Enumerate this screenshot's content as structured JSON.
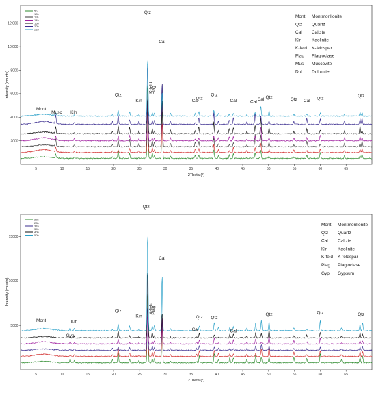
{
  "chart_data": [
    {
      "type": "line",
      "xlabel": "2Theta (°)",
      "ylabel": "Intensity (counts)",
      "xlim": [
        2,
        70
      ],
      "ylim": [
        0,
        13500
      ],
      "x_ticks": [
        5,
        10,
        15,
        20,
        25,
        30,
        35,
        40,
        45,
        50,
        55,
        60,
        65
      ],
      "y_ticks": [
        2000,
        4000,
        6000,
        8000,
        10000,
        12000
      ],
      "y_tick_labels": [
        "2000",
        "4000",
        "6000",
        "8000",
        "10,000",
        "12,000"
      ],
      "legend_position": "top-left",
      "series": [
        {
          "name": "5b",
          "color": "#2e8b2e",
          "baseline": 500
        },
        {
          "name": "10b",
          "color": "#d23030",
          "baseline": 1000
        },
        {
          "name": "11b",
          "color": "#3a3a3a",
          "baseline": 1500
        },
        {
          "name": "14b",
          "color": "#a020a0",
          "baseline": 2000
        },
        {
          "name": "15b",
          "color": "#111111",
          "baseline": 2600
        },
        {
          "name": "20b",
          "color": "#3b2d8f",
          "baseline": 3400
        },
        {
          "name": "21b",
          "color": "#2aa0c8",
          "baseline": 4100
        }
      ],
      "peaks": [
        {
          "x": 8.8,
          "height": 900
        },
        {
          "x": 12.4,
          "height": 250
        },
        {
          "x": 19.8,
          "height": 300
        },
        {
          "x": 20.9,
          "height": 1000
        },
        {
          "x": 23.1,
          "height": 700
        },
        {
          "x": 24.9,
          "height": 300
        },
        {
          "x": 26.6,
          "height": 9000
        },
        {
          "x": 27.5,
          "height": 700
        },
        {
          "x": 27.9,
          "height": 500
        },
        {
          "x": 29.4,
          "height": 6000
        },
        {
          "x": 31.0,
          "height": 500
        },
        {
          "x": 35.8,
          "height": 450
        },
        {
          "x": 36.5,
          "height": 700
        },
        {
          "x": 39.4,
          "height": 1200
        },
        {
          "x": 40.3,
          "height": 400
        },
        {
          "x": 42.4,
          "height": 500
        },
        {
          "x": 43.2,
          "height": 900
        },
        {
          "x": 45.8,
          "height": 300
        },
        {
          "x": 47.4,
          "height": 1200
        },
        {
          "x": 48.5,
          "height": 1500
        },
        {
          "x": 50.1,
          "height": 800
        },
        {
          "x": 54.9,
          "height": 300
        },
        {
          "x": 57.4,
          "height": 600
        },
        {
          "x": 60.0,
          "height": 700
        },
        {
          "x": 64.7,
          "height": 400
        },
        {
          "x": 67.7,
          "height": 700
        },
        {
          "x": 68.1,
          "height": 800
        }
      ],
      "annotations": [
        {
          "text": "Mont",
          "x": 6.0,
          "y": 4600
        },
        {
          "text": "Musc",
          "x": 9.0,
          "y": 4300
        },
        {
          "text": "Kln",
          "x": 12.3,
          "y": 4300
        },
        {
          "text": "Qtz",
          "x": 20.9,
          "y": 5800
        },
        {
          "text": "Kln",
          "x": 24.9,
          "y": 5300
        },
        {
          "text": "Qtz",
          "x": 26.6,
          "y": 12800
        },
        {
          "text": "K-feld",
          "x": 27.5,
          "y": 6500
        },
        {
          "text": "Plag",
          "x": 28.0,
          "y": 6300
        },
        {
          "text": "Cal",
          "x": 29.4,
          "y": 10300
        },
        {
          "text": "Cal",
          "x": 35.8,
          "y": 5300
        },
        {
          "text": "Qtz",
          "x": 36.6,
          "y": 5500
        },
        {
          "text": "Qtz",
          "x": 39.5,
          "y": 5800
        },
        {
          "text": "Cal",
          "x": 43.2,
          "y": 5300
        },
        {
          "text": "Cal",
          "x": 47.1,
          "y": 5200
        },
        {
          "text": "Cal",
          "x": 48.5,
          "y": 5400
        },
        {
          "text": "Qtz",
          "x": 50.1,
          "y": 5600
        },
        {
          "text": "Qtz",
          "x": 54.9,
          "y": 5400
        },
        {
          "text": "Cal",
          "x": 57.4,
          "y": 5300
        },
        {
          "text": "Qtz",
          "x": 60.0,
          "y": 5500
        },
        {
          "text": "Qtz",
          "x": 67.9,
          "y": 5700
        }
      ],
      "key": [
        {
          "abbr": "Mont",
          "name": "Montmorillonite"
        },
        {
          "abbr": "Qtz",
          "name": "Quartz"
        },
        {
          "abbr": "Cal",
          "name": "Calcite"
        },
        {
          "abbr": "Kln",
          "name": "Kaolinite"
        },
        {
          "abbr": "K-feld",
          "name": "K-feldspar"
        },
        {
          "abbr": "Plag",
          "name": "Plagioclase"
        },
        {
          "abbr": "Mus",
          "name": "Muscovite"
        },
        {
          "abbr": "Dol",
          "name": "Dolomite"
        }
      ]
    },
    {
      "type": "line",
      "xlabel": "2Theta (°)",
      "ylabel": "Intensity (counts)",
      "xlim": [
        2,
        70
      ],
      "ylim": [
        0,
        17500
      ],
      "x_ticks": [
        5,
        10,
        15,
        20,
        25,
        30,
        35,
        40,
        45,
        50,
        55,
        60,
        65
      ],
      "y_ticks": [
        5000,
        10000,
        15000
      ],
      "y_tick_labels": [
        "5000",
        "10000",
        "15000"
      ],
      "legend_position": "top-left",
      "series": [
        {
          "name": "22b",
          "color": "#2e8b2e",
          "baseline": 800
        },
        {
          "name": "23b",
          "color": "#d23030",
          "baseline": 1500
        },
        {
          "name": "31b",
          "color": "#3b2d8f",
          "baseline": 2200
        },
        {
          "name": "39b",
          "color": "#a020a0",
          "baseline": 2900
        },
        {
          "name": "40b",
          "color": "#111111",
          "baseline": 3600
        },
        {
          "name": "50b",
          "color": "#2aa0c8",
          "baseline": 4400
        }
      ],
      "peaks": [
        {
          "x": 11.6,
          "height": 500
        },
        {
          "x": 12.4,
          "height": 400
        },
        {
          "x": 19.8,
          "height": 400
        },
        {
          "x": 20.9,
          "height": 1400
        },
        {
          "x": 23.1,
          "height": 600
        },
        {
          "x": 24.9,
          "height": 300
        },
        {
          "x": 26.6,
          "height": 13000
        },
        {
          "x": 27.5,
          "height": 900
        },
        {
          "x": 27.9,
          "height": 700
        },
        {
          "x": 29.4,
          "height": 7500
        },
        {
          "x": 31.0,
          "height": 300
        },
        {
          "x": 36.1,
          "height": 400
        },
        {
          "x": 36.6,
          "height": 900
        },
        {
          "x": 39.5,
          "height": 1200
        },
        {
          "x": 40.3,
          "height": 500
        },
        {
          "x": 42.5,
          "height": 700
        },
        {
          "x": 43.2,
          "height": 800
        },
        {
          "x": 45.8,
          "height": 500
        },
        {
          "x": 47.5,
          "height": 1100
        },
        {
          "x": 48.6,
          "height": 1200
        },
        {
          "x": 50.1,
          "height": 1600
        },
        {
          "x": 54.9,
          "height": 700
        },
        {
          "x": 57.4,
          "height": 500
        },
        {
          "x": 60.0,
          "height": 1500
        },
        {
          "x": 64.1,
          "height": 400
        },
        {
          "x": 67.7,
          "height": 900
        },
        {
          "x": 68.2,
          "height": 1100
        }
      ],
      "annotations": [
        {
          "text": "Mont",
          "x": 6.0,
          "y": 5400
        },
        {
          "text": "Kln",
          "x": 12.4,
          "y": 5300
        },
        {
          "text": "Gyp",
          "x": 11.6,
          "y": 3700
        },
        {
          "text": "Qtz",
          "x": 20.9,
          "y": 6500
        },
        {
          "text": "Kln",
          "x": 24.9,
          "y": 5900
        },
        {
          "text": "Qtz",
          "x": 26.3,
          "y": 18200
        },
        {
          "text": "K-feld",
          "x": 27.5,
          "y": 6900
        },
        {
          "text": "Plag",
          "x": 27.9,
          "y": 6700
        },
        {
          "text": "Cal",
          "x": 29.4,
          "y": 12400
        },
        {
          "text": "Cal",
          "x": 35.8,
          "y": 4400
        },
        {
          "text": "Qtz",
          "x": 36.6,
          "y": 5800
        },
        {
          "text": "Qtz",
          "x": 39.5,
          "y": 5700
        },
        {
          "text": "Cal",
          "x": 43.2,
          "y": 4200
        },
        {
          "text": "Qtz",
          "x": 50.1,
          "y": 6100
        },
        {
          "text": "Qtz",
          "x": 60.0,
          "y": 6300
        },
        {
          "text": "Qtz",
          "x": 67.9,
          "y": 6100
        }
      ],
      "key": [
        {
          "abbr": "Mont",
          "name": "Montmorillonite"
        },
        {
          "abbr": "Qtz",
          "name": "Quartz"
        },
        {
          "abbr": "Cal",
          "name": "Calcite"
        },
        {
          "abbr": "Kln",
          "name": "Kaolinite"
        },
        {
          "abbr": "K-feld",
          "name": "K-feldspar"
        },
        {
          "abbr": "Plag",
          "name": "Plagioclase"
        },
        {
          "abbr": "Gyp",
          "name": "Gypsum"
        }
      ]
    }
  ]
}
